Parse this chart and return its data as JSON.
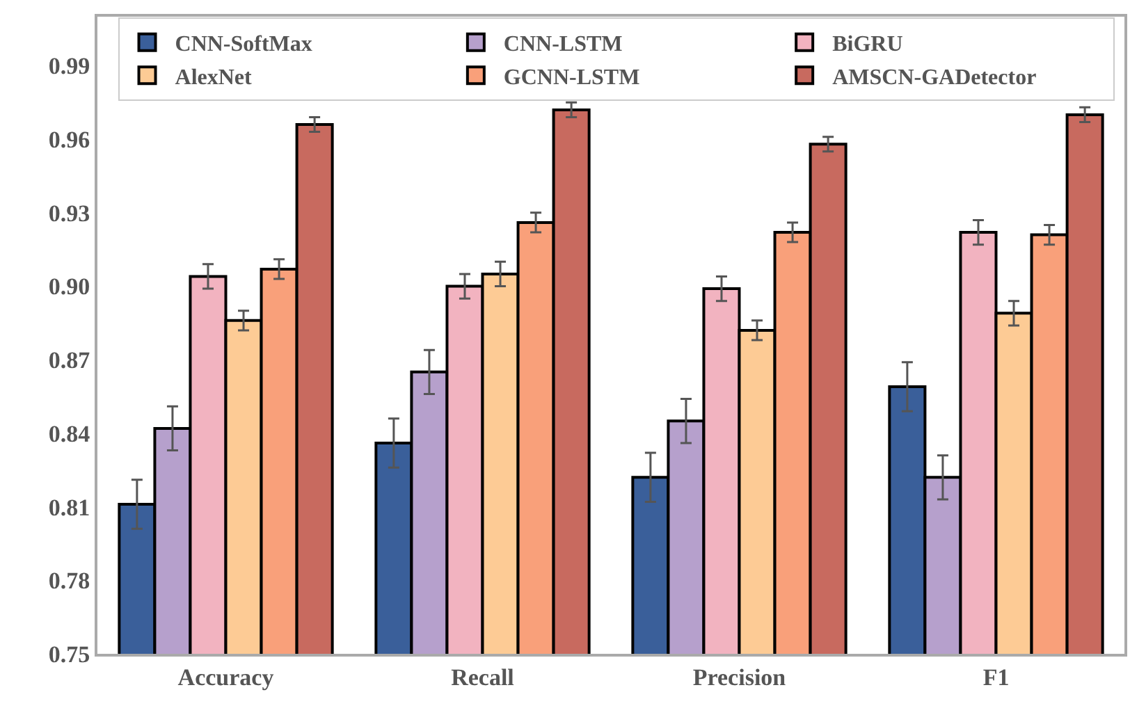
{
  "chart_data": {
    "type": "bar",
    "categories": [
      "Accuracy",
      "Recall",
      "Precision",
      "F1"
    ],
    "series": [
      {
        "name": "CNN-SoftMax",
        "color": "#3a5f9a",
        "values": [
          0.811,
          0.836,
          0.822,
          0.859
        ],
        "errors": [
          0.01,
          0.01,
          0.01,
          0.01
        ]
      },
      {
        "name": "CNN-LSTM",
        "color": "#b6a0cc",
        "values": [
          0.842,
          0.865,
          0.845,
          0.822
        ],
        "errors": [
          0.009,
          0.009,
          0.009,
          0.009
        ]
      },
      {
        "name": "BiGRU",
        "color": "#f2b3c0",
        "values": [
          0.904,
          0.9,
          0.899,
          0.922
        ],
        "errors": [
          0.005,
          0.005,
          0.005,
          0.005
        ]
      },
      {
        "name": "AlexNet",
        "color": "#fdcb95",
        "values": [
          0.886,
          0.905,
          0.882,
          0.889
        ],
        "errors": [
          0.004,
          0.005,
          0.004,
          0.005
        ]
      },
      {
        "name": "GCNN-LSTM",
        "color": "#f9a07a",
        "values": [
          0.907,
          0.926,
          0.922,
          0.921
        ],
        "errors": [
          0.004,
          0.004,
          0.004,
          0.004
        ]
      },
      {
        "name": "AMSCN-GADetector",
        "color": "#c86a5f",
        "values": [
          0.966,
          0.972,
          0.958,
          0.97
        ],
        "errors": [
          0.003,
          0.003,
          0.003,
          0.003
        ]
      }
    ],
    "ylim": [
      0.75,
      1.01
    ],
    "yticks": [
      0.75,
      0.78,
      0.81,
      0.84,
      0.87,
      {
        "value": 0.9,
        "label": "0.90"
      },
      0.93,
      0.96,
      0.99
    ],
    "grid": false,
    "legend": "top"
  }
}
